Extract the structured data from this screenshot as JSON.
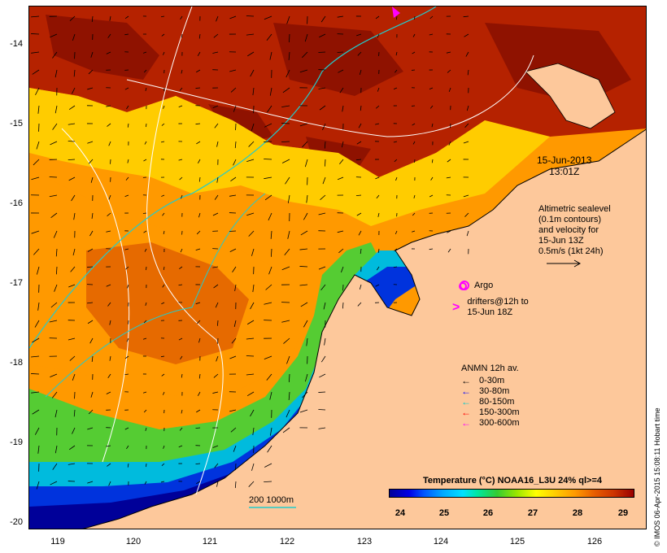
{
  "map": {
    "lat_ticks": [
      "-14",
      "-15",
      "-16",
      "-17",
      "-18",
      "-19",
      "-20"
    ],
    "lon_ticks": [
      "119",
      "120",
      "121",
      "122",
      "123",
      "124",
      "125",
      "126"
    ],
    "datetime_line1": "15-Jun-2013",
    "datetime_line2": "13:01Z",
    "altimetry_text": [
      "Altimetric sealevel",
      "(0.1m contours)",
      "and velocity for",
      "15-Jun 13Z",
      "0.5m/s (1kt 24h)"
    ],
    "argo_label": "Argo",
    "drifters_line1": "drifters@12h to",
    "drifters_line2": "15-Jun 18Z",
    "anmn_title": "ANMN 12h av.",
    "anmn_legend": [
      {
        "label": "0-30m",
        "color": "#000000"
      },
      {
        "label": "30-80m",
        "color": "#0000ff"
      },
      {
        "label": "80-150m",
        "color": "#00cccc"
      },
      {
        "label": "150-300m",
        "color": "#ff0000"
      },
      {
        "label": "300-600m",
        "color": "#ff00ff"
      }
    ],
    "isobath_label": "200 1000m",
    "colorbar_title": "Temperature (°C) NOAA16_L3U 24% ql>=4",
    "colorbar_ticks": [
      "24",
      "25",
      "26",
      "27",
      "28",
      "29"
    ],
    "side_text": "© IMOS 06-Apr-2015 15:08:11 Hobart time",
    "colors": {
      "land": "#fdc89b",
      "warm": "#cc3300",
      "hot": "#a01800",
      "orange": "#ff9900",
      "yellow": "#ffcc00",
      "green": "#66dd22",
      "cyan": "#00ccee",
      "blue": "#0033dd",
      "deep_blue": "#000099"
    }
  }
}
